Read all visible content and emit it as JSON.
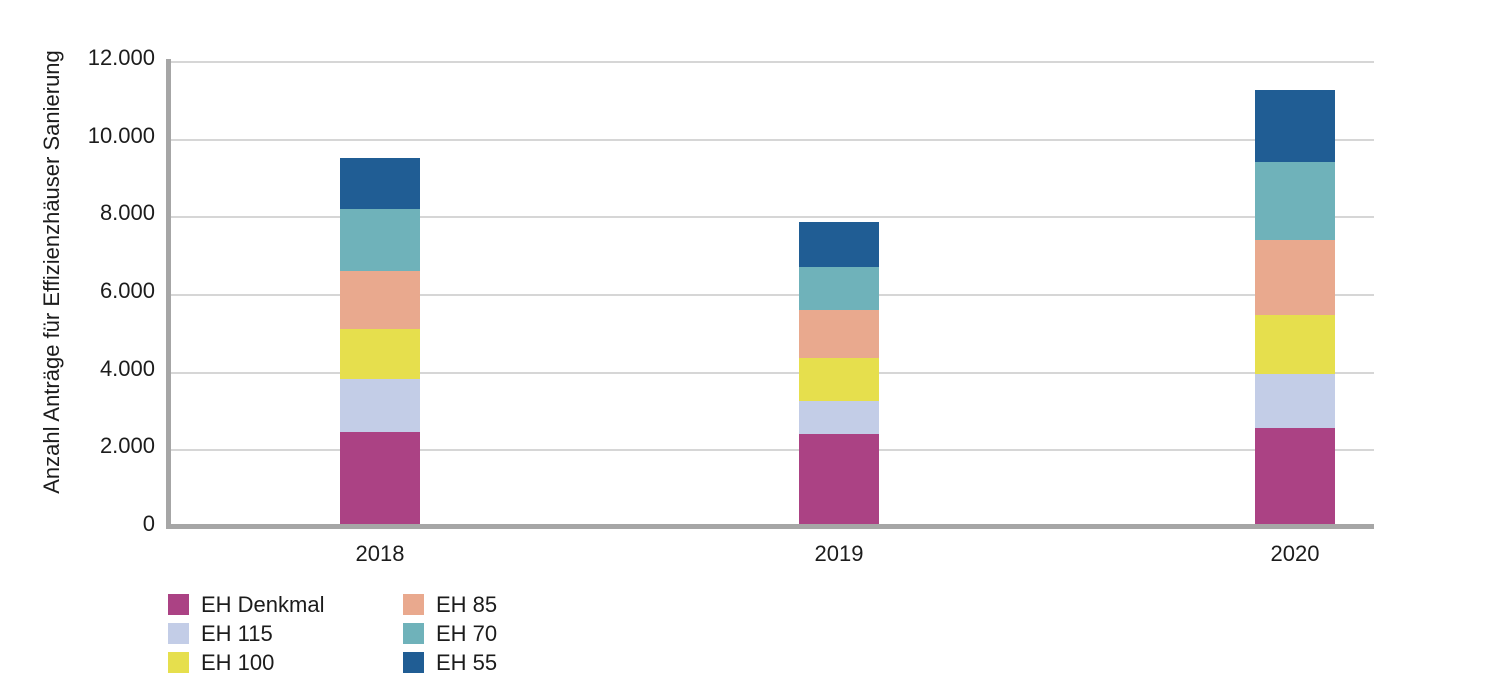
{
  "chart_data": {
    "type": "bar",
    "stacked": true,
    "title": "",
    "xlabel": "",
    "ylabel": "Anzahl Anträge für Effizienzhäuser Sanierung",
    "categories": [
      "2018",
      "2019",
      "2020"
    ],
    "series": [
      {
        "name": "EH Denkmal",
        "color": "#ab4284",
        "values": [
          2450,
          2400,
          2550
        ]
      },
      {
        "name": "EH 115",
        "color": "#c3cde7",
        "values": [
          1350,
          850,
          1400
        ]
      },
      {
        "name": "EH 100",
        "color": "#e6df4d",
        "values": [
          1300,
          1100,
          1500
        ]
      },
      {
        "name": "EH 85",
        "color": "#e9a98e",
        "values": [
          1500,
          1250,
          1950
        ]
      },
      {
        "name": "EH 70",
        "color": "#6fb2ba",
        "values": [
          1600,
          1100,
          2000
        ]
      },
      {
        "name": "EH 55",
        "color": "#205d94",
        "values": [
          1300,
          1150,
          1850
        ]
      }
    ],
    "stack_totals": [
      9500,
      7850,
      11250
    ],
    "ylim": [
      0,
      12000
    ],
    "ytick_step": 2000,
    "ytick_labels": [
      "0",
      "2.000",
      "4.000",
      "6.000",
      "8.000",
      "10.000",
      "12.000"
    ],
    "grid": "horizontal",
    "legend_position": "bottom-left",
    "legend_columns": [
      [
        "EH Denkmal",
        "EH 115",
        "EH 100"
      ],
      [
        "EH 85",
        "EH 70",
        "EH 55"
      ]
    ]
  },
  "style_colors": {
    "background": "#ffffff",
    "gridline": "#d6d6d6",
    "axis_line": "#a6a6a6",
    "text": "#1c1c1c"
  }
}
